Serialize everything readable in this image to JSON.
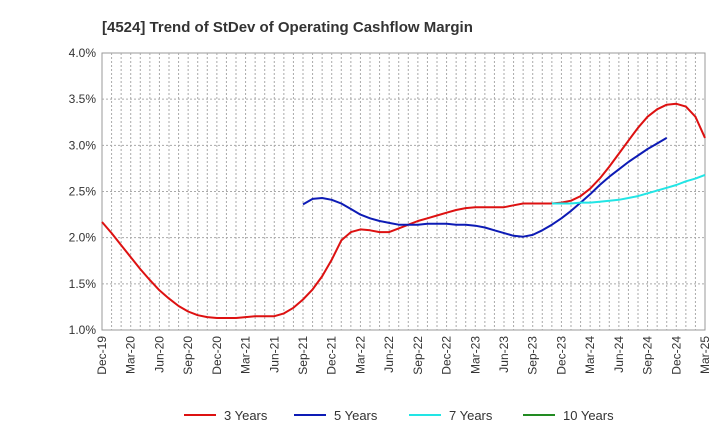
{
  "chart_data": {
    "type": "line",
    "title": "[4524]  Trend of StDev of Operating Cashflow Margin",
    "xlabel": "",
    "ylabel": "",
    "ylim": [
      1.0,
      4.0
    ],
    "y_ticks": [
      "1.0%",
      "1.5%",
      "2.0%",
      "2.5%",
      "3.0%",
      "3.5%",
      "4.0%"
    ],
    "x_ticks": [
      "Dec-19",
      "Mar-20",
      "Jun-20",
      "Sep-20",
      "Dec-20",
      "Mar-21",
      "Jun-21",
      "Sep-21",
      "Dec-21",
      "Mar-22",
      "Jun-22",
      "Sep-22",
      "Dec-22",
      "Mar-23",
      "Jun-23",
      "Sep-23",
      "Dec-23",
      "Mar-24",
      "Jun-24",
      "Sep-24",
      "Dec-24",
      "Mar-25"
    ],
    "grid": true,
    "legend_position": "bottom",
    "series": [
      {
        "name": "3 Years",
        "color": "#dd1111",
        "start_month": 0,
        "values": [
          2.17,
          2.05,
          1.92,
          1.79,
          1.66,
          1.54,
          1.43,
          1.34,
          1.26,
          1.2,
          1.16,
          1.14,
          1.13,
          1.13,
          1.13,
          1.14,
          1.15,
          1.15,
          1.15,
          1.18,
          1.24,
          1.33,
          1.44,
          1.58,
          1.76,
          1.97,
          2.06,
          2.09,
          2.08,
          2.06,
          2.06,
          2.1,
          2.14,
          2.18,
          2.21,
          2.24,
          2.27,
          2.3,
          2.32,
          2.33,
          2.33,
          2.33,
          2.33,
          2.35,
          2.37,
          2.37,
          2.37,
          2.37,
          2.38,
          2.4,
          2.45,
          2.53,
          2.64,
          2.77,
          2.91,
          3.05,
          3.19,
          3.31,
          3.39,
          3.44,
          3.45,
          3.42,
          3.31,
          3.08
        ]
      },
      {
        "name": "5 Years",
        "color": "#0d1bb5",
        "start_month": 21,
        "values": [
          2.36,
          2.42,
          2.43,
          2.41,
          2.37,
          2.31,
          2.25,
          2.21,
          2.18,
          2.16,
          2.14,
          2.14,
          2.14,
          2.15,
          2.15,
          2.15,
          2.14,
          2.14,
          2.13,
          2.11,
          2.08,
          2.05,
          2.02,
          2.01,
          2.03,
          2.08,
          2.14,
          2.21,
          2.29,
          2.38,
          2.47,
          2.57,
          2.66,
          2.74,
          2.82,
          2.89,
          2.96,
          3.02,
          3.08
        ]
      },
      {
        "name": "7 Years",
        "color": "#22e5e5",
        "start_month": 47,
        "values": [
          2.37,
          2.37,
          2.37,
          2.38,
          2.38,
          2.39,
          2.4,
          2.41,
          2.43,
          2.45,
          2.48,
          2.51,
          2.54,
          2.57,
          2.61,
          2.64,
          2.68
        ]
      },
      {
        "name": "10 Years",
        "color": "#228B22",
        "start_month": 0,
        "values": []
      }
    ]
  }
}
